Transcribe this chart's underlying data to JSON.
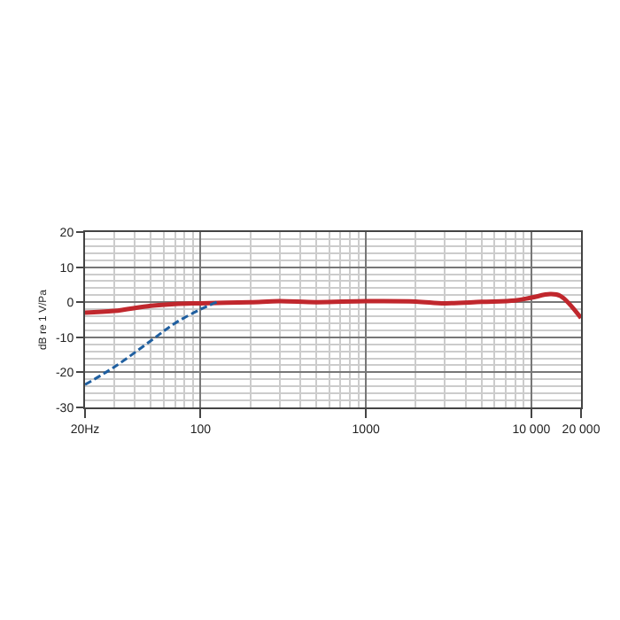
{
  "chart_data": {
    "type": "line",
    "ylabel": "dB re 1 V/Pa",
    "log": "x",
    "grid": true,
    "xlim": [
      20,
      20000
    ],
    "xticks": [
      {
        "value": 20,
        "label": "20Hz"
      },
      100,
      1000,
      {
        "value": 10000,
        "label": "10 000"
      },
      {
        "value": 20000,
        "label": "20 000"
      }
    ],
    "ylim": [
      -30,
      20
    ],
    "yticks": [
      -30,
      -20,
      -10,
      0,
      10,
      20
    ],
    "series": [
      {
        "color": "#c0272d",
        "line_style": "solid",
        "x": [
          20,
          30,
          50,
          70,
          100,
          200,
          300,
          500,
          1000,
          2000,
          3000,
          5000,
          8000,
          10000,
          13000,
          15000,
          20000
        ],
        "values": [
          -3,
          -2.5,
          -1,
          -0.5,
          -0.3,
          0,
          0.3,
          0,
          0.3,
          0.2,
          -0.3,
          0.1,
          0.5,
          1.3,
          2.3,
          1.8,
          -4.5
        ]
      },
      {
        "color": "#1f5fa0",
        "line_style": "dashed",
        "x": [
          20,
          30,
          50,
          70,
          100,
          125
        ],
        "values": [
          -23.5,
          -18.5,
          -11,
          -6,
          -2,
          0
        ]
      }
    ]
  }
}
